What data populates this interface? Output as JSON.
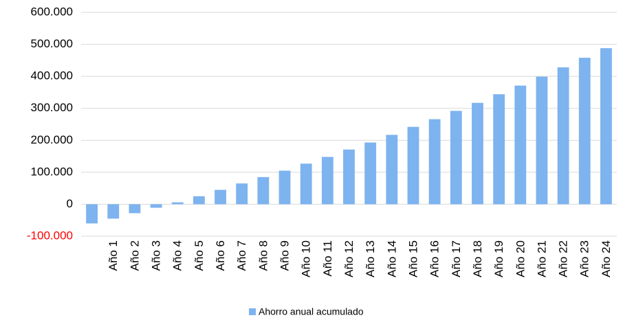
{
  "chart_data": {
    "type": "bar",
    "categories": [
      null,
      "Año 1",
      "Año 2",
      "Año 3",
      "Año 4",
      "Año 5",
      "Año 6",
      "Año 7",
      "Año 8",
      "Año 9",
      "Año 10",
      "Año 11",
      "Año 12",
      "Año 13",
      "Año 14",
      "Año 15",
      "Año 16",
      "Año 17",
      "Año 18",
      "Año 19",
      "Año 20",
      "Año 21",
      "Año 22",
      "Año 23",
      "Año 24"
    ],
    "series": [
      {
        "name": "Ahorro anual acumulado",
        "color": "#7db3ef",
        "values": [
          -60000,
          -45000,
          -28000,
          -11000,
          6000,
          25000,
          45000,
          65000,
          85000,
          105000,
          127000,
          148000,
          171000,
          193000,
          217000,
          242000,
          266000,
          292000,
          317000,
          344000,
          371000,
          399000,
          428000,
          458000,
          488000
        ]
      }
    ],
    "ylim": [
      -100000,
      600000
    ],
    "yticks": [
      {
        "value": -100000,
        "label": "-100.000"
      },
      0,
      {
        "value": 100000,
        "label": "100.000"
      },
      {
        "value": 200000,
        "label": "200.000"
      },
      {
        "value": 300000,
        "label": "300.000"
      },
      {
        "value": 400000,
        "label": "400.000"
      },
      {
        "value": 500000,
        "label": "500.000"
      },
      {
        "value": 600000,
        "label": "600.000"
      }
    ],
    "negative_tick_color": "#ff0000",
    "grid": true,
    "legend": "bottom"
  }
}
